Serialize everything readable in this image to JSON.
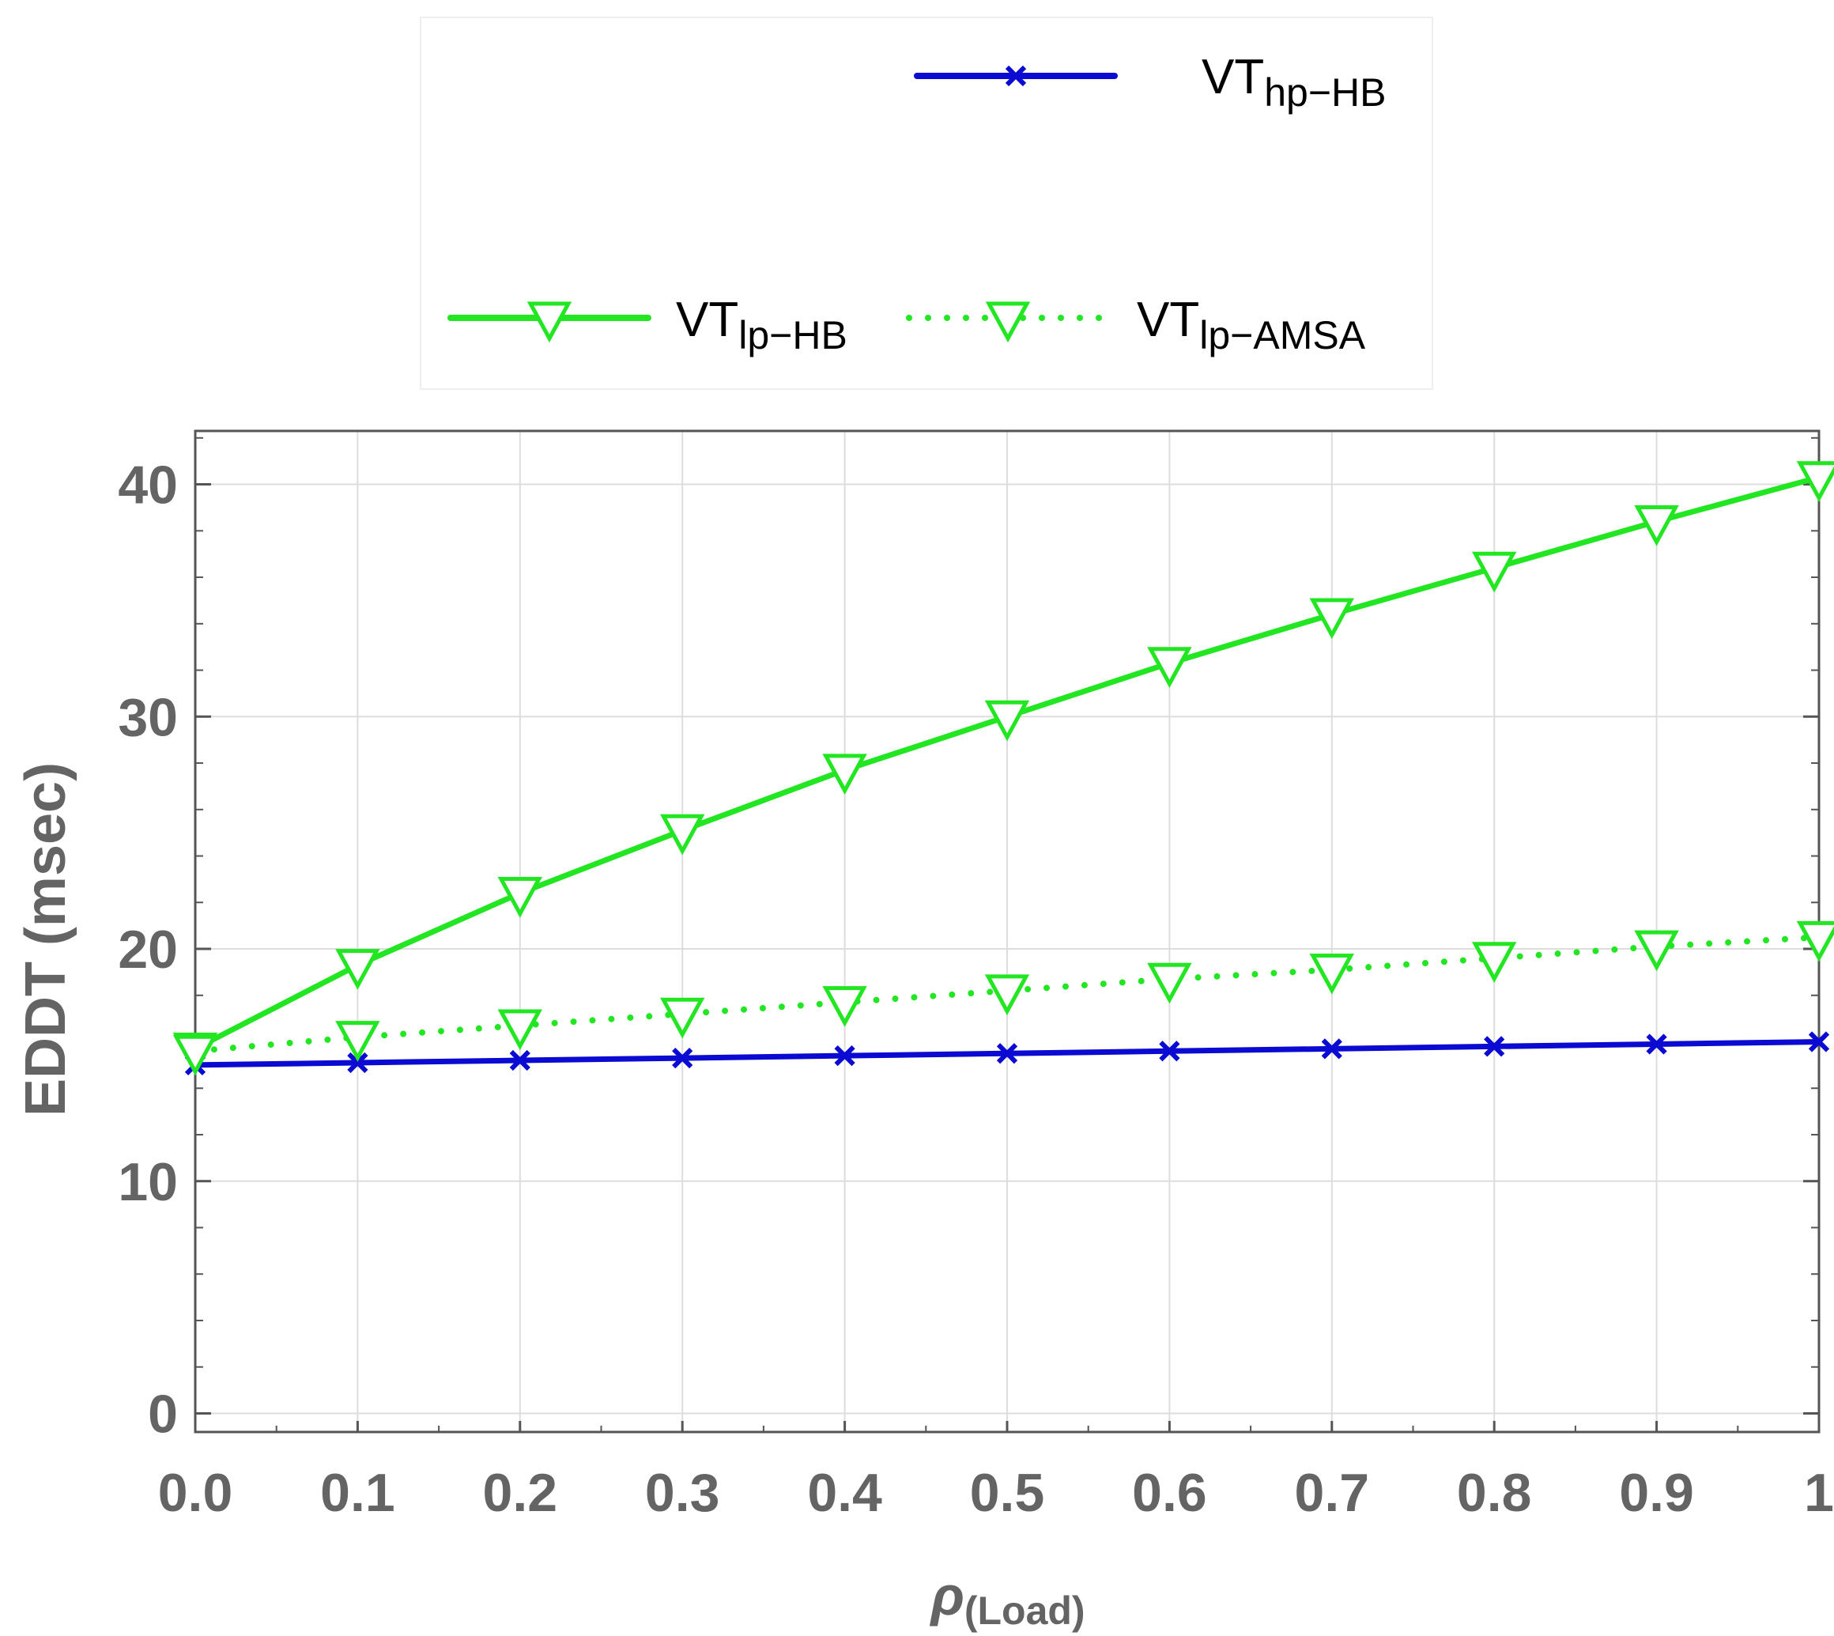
{
  "chart_data": {
    "type": "line",
    "title": "",
    "xlabel": "ρ",
    "xlabel_sub": "(Load)",
    "ylabel": "EDDT (msec)",
    "xlim": [
      0,
      1
    ],
    "ylim": [
      -0.8,
      42.3
    ],
    "x_ticks": [
      0,
      0.1,
      0.2,
      0.3,
      0.4,
      0.5,
      0.6,
      0.7,
      0.8,
      0.9,
      1
    ],
    "x_tick_labels": [
      "0.0",
      "0.1",
      "0.2",
      "0.3",
      "0.4",
      "0.5",
      "0.6",
      "0.7",
      "0.8",
      "0.9",
      "1"
    ],
    "y_ticks": [
      0,
      10,
      20,
      30,
      40
    ],
    "y_tick_labels": [
      "0",
      "10",
      "20",
      "30",
      "40"
    ],
    "y_minor_step": 2,
    "grid": true,
    "legend_position": "top",
    "x": [
      0,
      0.1,
      0.2,
      0.3,
      0.4,
      0.5,
      0.6,
      0.7,
      0.8,
      0.9,
      1
    ],
    "series": [
      {
        "name_main": "VT",
        "name_sub": "hp−HB",
        "style": "solid",
        "marker": "x",
        "color": "#0a0ad2",
        "values": [
          15.0,
          15.1,
          15.2,
          15.3,
          15.4,
          15.5,
          15.6,
          15.7,
          15.8,
          15.9,
          16.0
        ]
      },
      {
        "name_main": "VT",
        "name_sub": "lp−HB",
        "style": "solid",
        "marker": "triangle-down",
        "color": "#22e622",
        "values": [
          15.7,
          19.3,
          22.4,
          25.1,
          27.7,
          30.0,
          32.3,
          34.4,
          36.4,
          38.4,
          40.3
        ]
      },
      {
        "name_main": "VT",
        "name_sub": "lp−AMSA",
        "style": "dotted",
        "marker": "triangle-down",
        "color": "#22e622",
        "values": [
          15.6,
          16.2,
          16.7,
          17.2,
          17.7,
          18.2,
          18.7,
          19.1,
          19.6,
          20.1,
          20.5
        ]
      }
    ]
  }
}
